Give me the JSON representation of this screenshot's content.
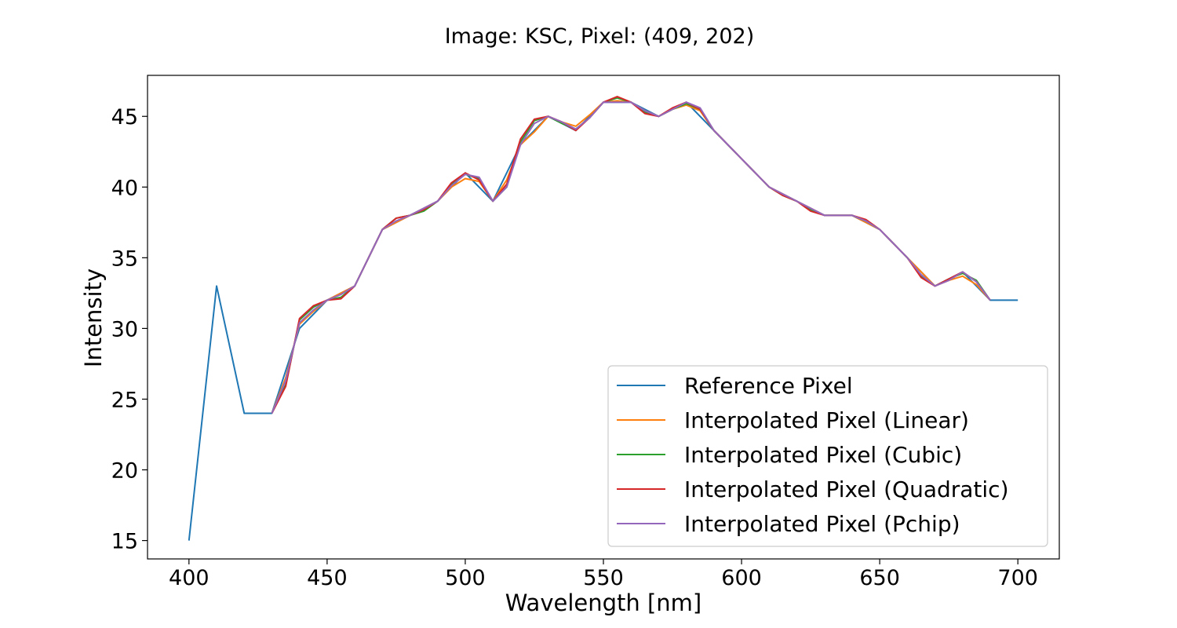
{
  "chart_data": {
    "type": "line",
    "title": "Image: KSC, Pixel: (409, 202)",
    "xlabel": "Wavelength [nm]",
    "ylabel": "Intensity",
    "xlim": [
      385,
      715
    ],
    "ylim": [
      13.7,
      47.9
    ],
    "xticks": [
      400,
      450,
      500,
      550,
      600,
      650,
      700
    ],
    "yticks": [
      15,
      20,
      25,
      30,
      35,
      40,
      45
    ],
    "grid": false,
    "legend_position": "lower-right",
    "series": [
      {
        "name": "Reference Pixel",
        "color": "#1f77b4",
        "x": [
          400,
          410,
          420,
          430,
          440,
          450,
          460,
          470,
          480,
          490,
          500,
          510,
          520,
          530,
          540,
          550,
          560,
          570,
          580,
          590,
          600,
          610,
          620,
          630,
          640,
          650,
          660,
          670,
          680,
          690,
          700
        ],
        "y": [
          15,
          33,
          24,
          24,
          30,
          32,
          33,
          37,
          38,
          39,
          41,
          39,
          43,
          45,
          44,
          46,
          46,
          45,
          46,
          44,
          42,
          40,
          39,
          38,
          38,
          37,
          35,
          33,
          34,
          32,
          32
        ]
      },
      {
        "name": "Interpolated Pixel (Linear)",
        "color": "#ff7f0e",
        "x": [
          430,
          435,
          440,
          445,
          450,
          455,
          460,
          465,
          470,
          475,
          480,
          485,
          490,
          495,
          500,
          505,
          510,
          515,
          520,
          525,
          530,
          535,
          540,
          545,
          550,
          555,
          560,
          565,
          570,
          575,
          580,
          585,
          590,
          595,
          600,
          605,
          610,
          615,
          620,
          625,
          630,
          635,
          640,
          645,
          650,
          655,
          660,
          665,
          670,
          675,
          680,
          685,
          690
        ],
        "y": [
          24,
          26.5,
          30.3,
          31.2,
          32,
          32.5,
          33,
          35,
          37,
          37.5,
          38,
          38.5,
          39,
          40,
          40.6,
          40.4,
          39,
          40.5,
          43,
          43.9,
          45,
          44.6,
          44.3,
          45.1,
          46,
          46.1,
          46,
          45.4,
          45,
          45.5,
          45.8,
          45.4,
          44,
          43,
          42,
          41,
          40,
          39.5,
          39,
          38.5,
          38,
          38,
          38,
          37.5,
          37,
          36,
          35,
          34,
          33,
          33.4,
          33.7,
          33.1,
          32
        ]
      },
      {
        "name": "Interpolated Pixel (Cubic)",
        "color": "#2ca02c",
        "x": [
          430,
          435,
          440,
          445,
          450,
          455,
          460,
          465,
          470,
          475,
          480,
          485,
          490,
          495,
          500,
          505,
          510,
          515,
          520,
          525,
          530,
          535,
          540,
          545,
          550,
          555,
          560,
          565,
          570,
          575,
          580,
          585,
          590,
          595,
          600,
          605,
          610,
          615,
          620,
          625,
          630,
          635,
          640,
          645,
          650,
          655,
          660,
          665,
          670,
          675,
          680,
          685,
          690
        ],
        "y": [
          24,
          26,
          30.6,
          31.5,
          32,
          32.2,
          33,
          35,
          37,
          37.8,
          38,
          38.3,
          39,
          40.2,
          40.9,
          40.6,
          39,
          40,
          43.2,
          44.7,
          45,
          44.5,
          44.1,
          44.9,
          46,
          46.3,
          46,
          45.3,
          45,
          45.5,
          45.9,
          45.5,
          44,
          43,
          42,
          41,
          40,
          39.4,
          39,
          38.4,
          38,
          38,
          38,
          37.6,
          37,
          36,
          35,
          33.7,
          33,
          33.5,
          33.9,
          33.4,
          32
        ]
      },
      {
        "name": "Interpolated Pixel (Quadratic)",
        "color": "#d62728",
        "x": [
          430,
          435,
          440,
          445,
          450,
          455,
          460,
          465,
          470,
          475,
          480,
          485,
          490,
          495,
          500,
          505,
          510,
          515,
          520,
          525,
          530,
          535,
          540,
          545,
          550,
          555,
          560,
          565,
          570,
          575,
          580,
          585,
          590,
          595,
          600,
          605,
          610,
          615,
          620,
          625,
          630,
          635,
          640,
          645,
          650,
          655,
          660,
          665,
          670,
          675,
          680,
          685,
          690
        ],
        "y": [
          24,
          25.9,
          30.7,
          31.6,
          32,
          32.1,
          33,
          35,
          37,
          37.8,
          38,
          38.4,
          39,
          40.3,
          41,
          40.5,
          39,
          40.2,
          43.4,
          44.8,
          45,
          44.6,
          44,
          44.9,
          46,
          46.4,
          46,
          45.2,
          45,
          45.6,
          46,
          45.5,
          44,
          43,
          42,
          41,
          40,
          39.4,
          39,
          38.3,
          38,
          38,
          38,
          37.7,
          37,
          36,
          35,
          33.6,
          33,
          33.5,
          34,
          33.3,
          32
        ]
      },
      {
        "name": "Interpolated Pixel (Pchip)",
        "color": "#9467bd",
        "x": [
          430,
          435,
          440,
          445,
          450,
          455,
          460,
          465,
          470,
          475,
          480,
          485,
          490,
          495,
          500,
          505,
          510,
          515,
          520,
          525,
          530,
          535,
          540,
          545,
          550,
          555,
          560,
          565,
          570,
          575,
          580,
          585,
          590,
          595,
          600,
          605,
          610,
          615,
          620,
          625,
          630,
          635,
          640,
          645,
          650,
          655,
          660,
          665,
          670,
          675,
          680,
          685,
          690
        ],
        "y": [
          24,
          26.3,
          30.4,
          31.3,
          32,
          32.4,
          33,
          35,
          37,
          37.6,
          38,
          38.5,
          39,
          40.1,
          40.9,
          40.7,
          39,
          40,
          43,
          44.5,
          45,
          44.6,
          44.1,
          44.9,
          46,
          46,
          46,
          45.4,
          45,
          45.5,
          46,
          45.6,
          44,
          43,
          42,
          41,
          40,
          39.5,
          39,
          38.5,
          38,
          38,
          38,
          37.6,
          37,
          36,
          35,
          33.8,
          33,
          33.4,
          34,
          33.3,
          32
        ]
      }
    ]
  }
}
